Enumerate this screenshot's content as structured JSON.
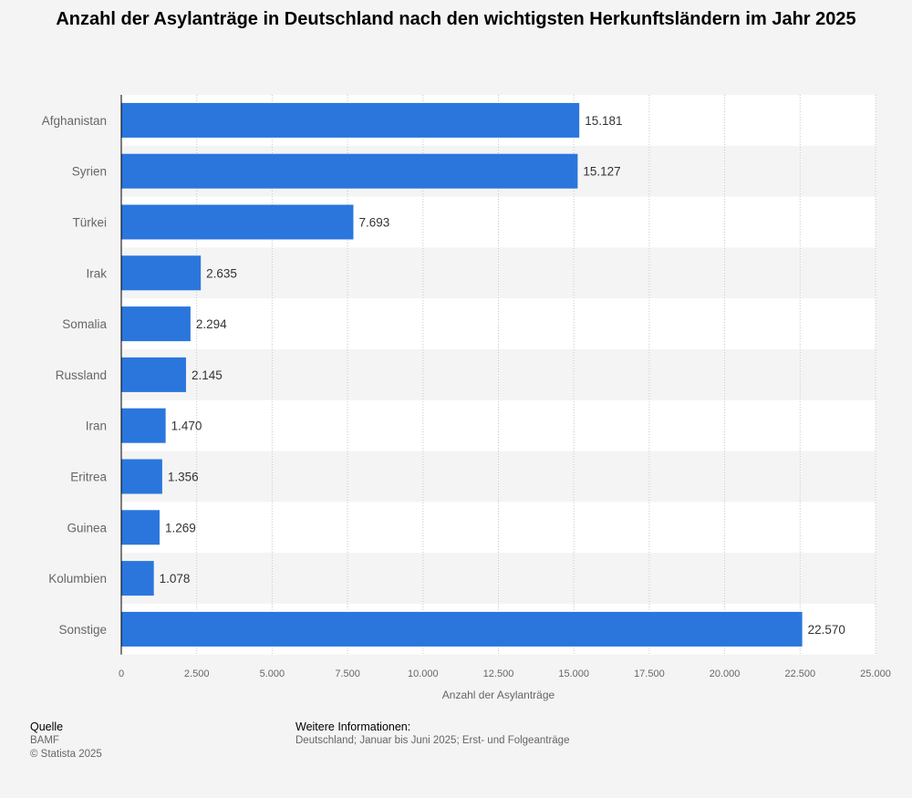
{
  "chart_data": {
    "type": "bar",
    "orientation": "horizontal",
    "title": "Anzahl der Asylanträge in Deutschland nach den wichtigsten Herkunftsländern im Jahr 2025",
    "categories": [
      "Afghanistan",
      "Syrien",
      "Türkei",
      "Irak",
      "Somalia",
      "Russland",
      "Iran",
      "Eritrea",
      "Guinea",
      "Kolumbien",
      "Sonstige"
    ],
    "values": [
      15181,
      15127,
      7693,
      2635,
      2294,
      2145,
      1470,
      1356,
      1269,
      1078,
      22570
    ],
    "value_labels": [
      "15.181",
      "15.127",
      "7.693",
      "2.635",
      "2.294",
      "2.145",
      "1.470",
      "1.356",
      "1.269",
      "1.078",
      "22.570"
    ],
    "xlabel": "Anzahl der Asylanträge",
    "ylabel": "",
    "xlim": [
      0,
      25000
    ],
    "xticks": [
      0,
      2500,
      5000,
      7500,
      10000,
      12500,
      15000,
      17500,
      20000,
      22500,
      25000
    ],
    "xtick_labels": [
      "0",
      "2.500",
      "5.000",
      "7.500",
      "10.000",
      "12.500",
      "15.000",
      "17.500",
      "20.000",
      "22.500",
      "25.000"
    ],
    "grid": true,
    "bar_color": "#2a76dd"
  },
  "footer": {
    "source_heading": "Quelle",
    "source_value": "BAMF",
    "copyright": "© Statista 2025",
    "info_heading": "Weitere Informationen:",
    "info_value": "Deutschland; Januar bis Juni 2025; Erst- und Folgeanträge"
  }
}
